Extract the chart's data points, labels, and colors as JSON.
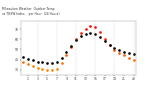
{
  "title": "Milwaukee Weather  Outdoor Temp    vs THSW Index    per Hour  (24 Hours)",
  "hours": [
    0,
    1,
    2,
    3,
    4,
    5,
    6,
    7,
    8,
    9,
    10,
    11,
    12,
    13,
    14,
    15,
    16,
    17,
    18,
    19,
    20,
    21,
    22,
    23
  ],
  "outdoor_temp": [
    43,
    41,
    40,
    38,
    38,
    37,
    37,
    38,
    42,
    47,
    53,
    59,
    63,
    65,
    66,
    65,
    62,
    58,
    54,
    51,
    49,
    47,
    46,
    45
  ],
  "thsw": [
    38,
    36,
    34,
    32,
    31,
    30,
    30,
    31,
    37,
    44,
    52,
    60,
    66,
    70,
    73,
    72,
    67,
    60,
    54,
    49,
    46,
    44,
    42,
    40
  ],
  "outdoor_temp_color": "#000000",
  "thsw_colors_low": "#ff8800",
  "thsw_colors_high": "#dd1100",
  "background_color": "#ffffff",
  "grid_color": "#aaaaaa",
  "ylim": [
    25,
    78
  ],
  "ytick_values": [
    30,
    40,
    50,
    60,
    70
  ],
  "ytick_labels": [
    "30",
    "40",
    "50",
    "60",
    "70"
  ],
  "xtick_values": [
    1,
    3,
    5,
    7,
    9,
    11,
    13,
    15,
    17,
    19,
    21,
    23
  ],
  "xtick_labels": [
    "1",
    "3",
    "5",
    "7",
    "9",
    "11",
    "13",
    "15",
    "17",
    "19",
    "21",
    "23"
  ],
  "vgrid_positions": [
    3,
    7,
    11,
    15,
    19,
    23
  ],
  "legend_orange_color": "#ff8800",
  "legend_red_color": "#dd1100"
}
